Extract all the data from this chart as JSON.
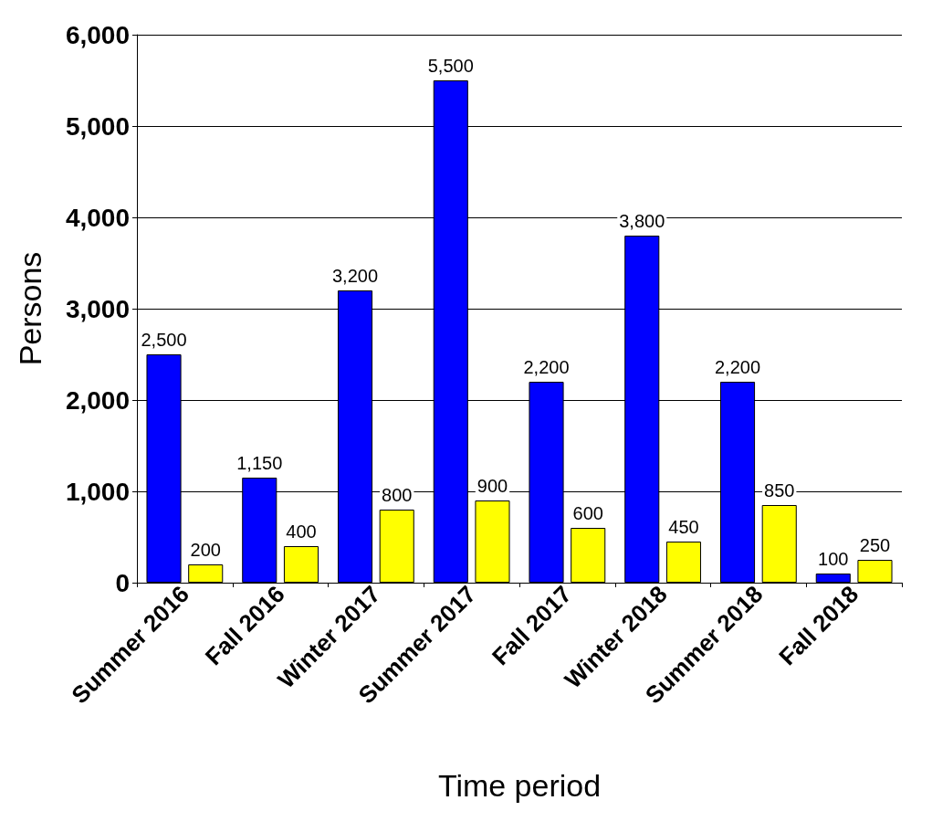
{
  "chart_data": {
    "type": "bar",
    "xlabel": "Time period",
    "ylabel": "Persons",
    "categories": [
      "Summer 2016",
      "Fall 2016",
      "Winter 2017",
      "Summer 2017",
      "Fall 2017",
      "Winter 2018",
      "Summer 2018",
      "Fall 2018"
    ],
    "series": [
      {
        "color": "#0000ff",
        "values": [
          2500,
          1150,
          3200,
          5500,
          2200,
          3800,
          2200,
          100
        ],
        "value_labels": [
          "2,500",
          "1,150",
          "3,200",
          "5,500",
          "2,200",
          "3,800",
          "2,200",
          "100"
        ]
      },
      {
        "color": "#ffff00",
        "values": [
          200,
          400,
          800,
          900,
          600,
          450,
          850,
          250
        ],
        "value_labels": [
          "200",
          "400",
          "800",
          "900",
          "600",
          "450",
          "850",
          "250"
        ]
      }
    ],
    "ylim": [
      0,
      6000
    ],
    "yticks": [
      {
        "value": 0,
        "label": "0"
      },
      {
        "value": 1000,
        "label": "1,000"
      },
      {
        "value": 2000,
        "label": "2,000"
      },
      {
        "value": 3000,
        "label": "3,000"
      },
      {
        "value": 4000,
        "label": "4,000"
      },
      {
        "value": 5000,
        "label": "5,000"
      },
      {
        "value": 6000,
        "label": "6,000"
      }
    ],
    "grid": "y"
  }
}
